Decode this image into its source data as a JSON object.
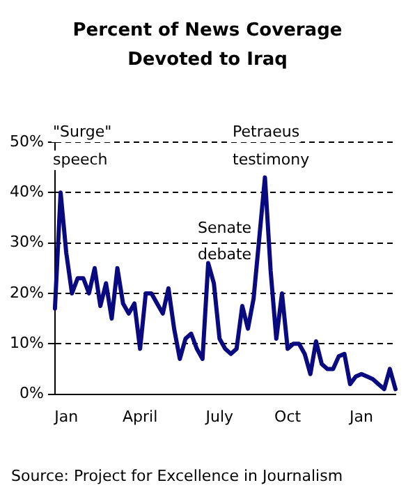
{
  "chart_data": {
    "type": "line",
    "title": "Percent of News Coverage Devoted to Iraq",
    "categories": [
      null,
      null,
      "Jan",
      null,
      null,
      null,
      null,
      null,
      null,
      null,
      null,
      null,
      null,
      null,
      null,
      "April",
      null,
      null,
      null,
      null,
      null,
      null,
      null,
      null,
      null,
      null,
      null,
      null,
      null,
      "July",
      null,
      null,
      null,
      null,
      null,
      null,
      null,
      null,
      null,
      null,
      null,
      "Oct",
      null,
      null,
      null,
      null,
      null,
      null,
      null,
      null,
      null,
      null,
      null,
      null,
      "Jan",
      null,
      null,
      null,
      null,
      null,
      null
    ],
    "values": [
      17,
      40,
      28,
      20,
      23,
      23,
      20,
      25,
      17.5,
      22,
      15,
      25,
      18,
      16,
      18,
      9,
      20,
      20,
      18,
      16,
      21,
      13,
      7,
      11,
      12,
      9,
      7,
      26,
      22,
      11,
      9,
      8,
      9,
      17.5,
      13,
      19,
      31,
      43,
      24.5,
      11,
      20,
      9,
      10,
      10,
      8,
      4,
      10.5,
      6,
      5,
      5,
      7.5,
      8,
      2,
      3.5,
      4,
      3.5,
      3,
      2,
      1,
      5,
      1
    ],
    "color": "#0a0a80",
    "ylim": [
      0,
      50
    ],
    "yticks": [
      {
        "value": 0,
        "label": "0%"
      },
      {
        "value": 10,
        "label": "10%"
      },
      {
        "value": 20,
        "label": "20%"
      },
      {
        "value": 30,
        "label": "30%"
      },
      {
        "value": 40,
        "label": "40%"
      },
      {
        "value": 50,
        "label": "50%"
      }
    ],
    "grid": "y",
    "line_style": "solid",
    "marker": "none",
    "legend": false,
    "annotations": [
      "\"Surge\" speech",
      "Petraeus testimony",
      "Senate debate",
      "Source: Project for Excellence in Journalism"
    ]
  }
}
